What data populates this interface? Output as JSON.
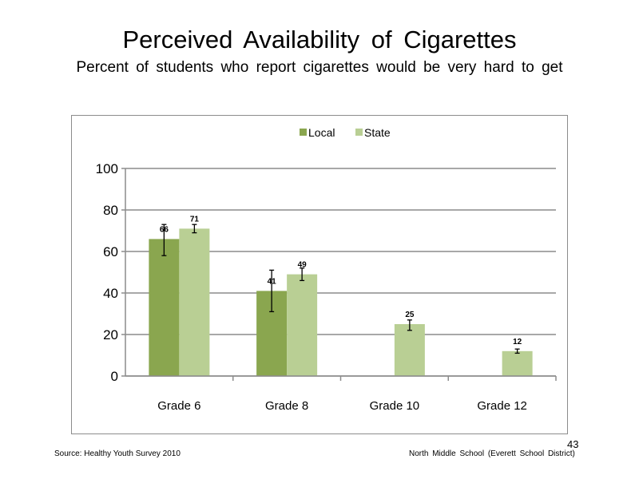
{
  "slide": {
    "title": "Perceived  Availability  of Cigarettes",
    "subtitle": "Percent of students who report cigarettes would be very hard to get",
    "source": "Source: Healthy Youth Survey 2010",
    "school": "North Middle School (Everett School District)",
    "page_number": "43"
  },
  "chart_data": {
    "type": "bar",
    "categories": [
      "Grade 6",
      "Grade 8",
      "Grade 10",
      "Grade 12"
    ],
    "series": [
      {
        "name": "Local",
        "color": "#8aa64f",
        "values": [
          66,
          41,
          null,
          null
        ],
        "labels": [
          "66",
          "41",
          "",
          ""
        ],
        "error_low": [
          58,
          31,
          null,
          null
        ],
        "error_high": [
          73,
          51,
          null,
          null
        ]
      },
      {
        "name": "State",
        "color": "#b9cf94",
        "values": [
          71,
          49,
          25,
          12
        ],
        "labels": [
          "71",
          "49",
          "25",
          "12"
        ],
        "error_low": [
          69,
          46,
          22,
          11
        ],
        "error_high": [
          73,
          52,
          27,
          13
        ]
      }
    ],
    "ylim": [
      0,
      100
    ],
    "yticks": [
      "0",
      "20",
      "40",
      "60",
      "80",
      "100"
    ],
    "grid": true,
    "legend": "top-center"
  }
}
